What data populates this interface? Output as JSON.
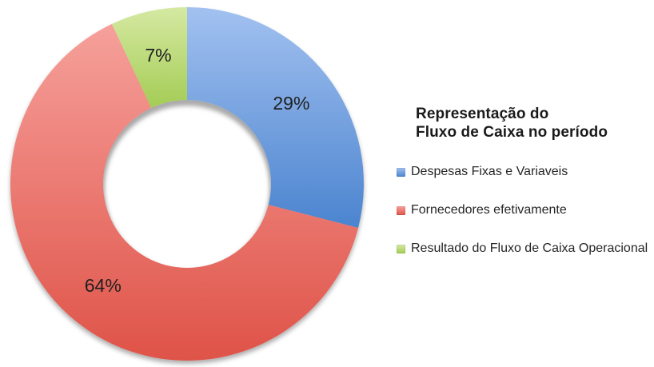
{
  "page": {
    "background_color": "#ffffff"
  },
  "chart_data": {
    "type": "pie",
    "subtype": "donut",
    "title_lines": [
      "Representação do",
      "Fluxo de Caixa no período"
    ],
    "legend_position": "right",
    "unit": "%",
    "label_color": "#1f1f1f",
    "slices": [
      {
        "name": "Despesas Fixas e Variaveis",
        "value": 29,
        "label": "29%",
        "color": "#6d9dde",
        "gradient_top": "#a2c1f0",
        "gradient_bottom": "#4b84cf"
      },
      {
        "name": "Fornecedores efetivamente",
        "value": 64,
        "label": "64%",
        "color": "#ea7166",
        "gradient_top": "#f6a09b",
        "gradient_bottom": "#df5348"
      },
      {
        "name": "Resultado do Fluxo de Caixa Operacional",
        "value": 7,
        "label": "7%",
        "color": "#bcdc78",
        "gradient_top": "#d5e9a2",
        "gradient_bottom": "#a4cc55"
      }
    ]
  }
}
